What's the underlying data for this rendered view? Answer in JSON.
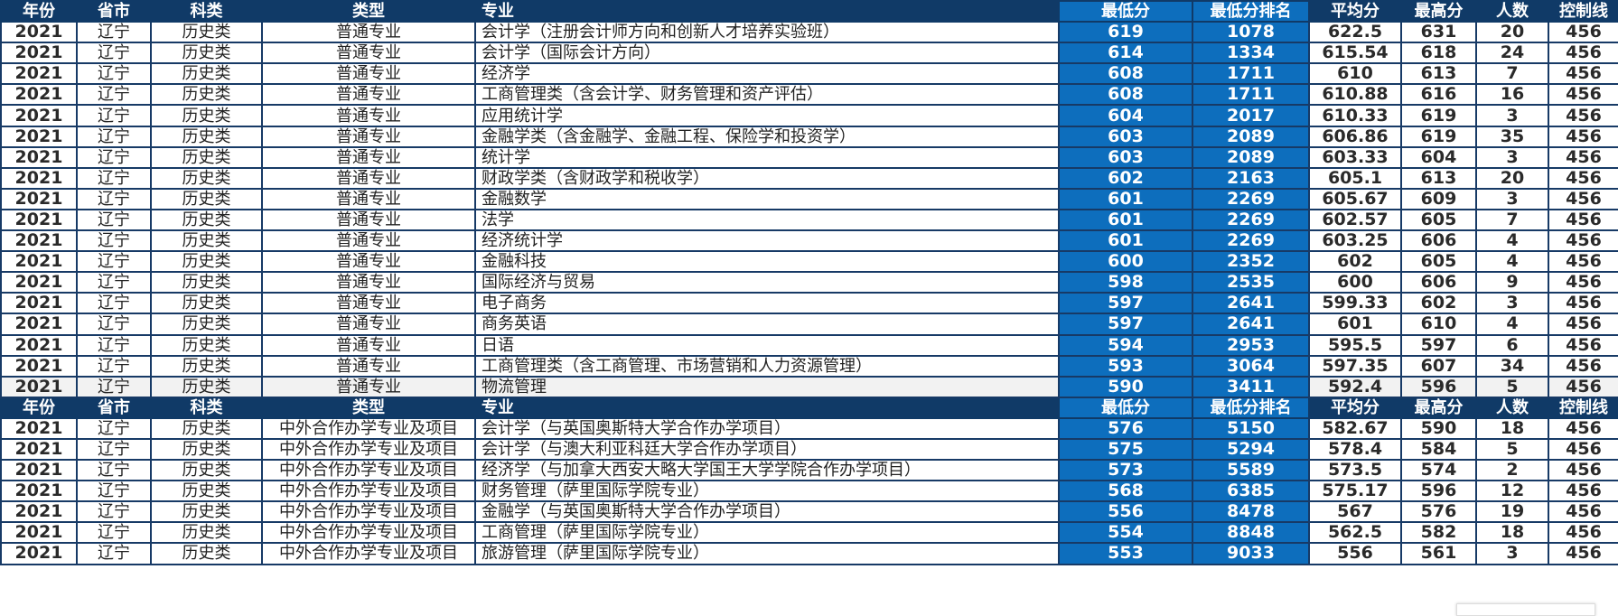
{
  "headers": [
    "年份",
    "省市",
    "科类",
    "类型",
    "专业",
    "最低分",
    "最低分排名",
    "平均分",
    "最高分",
    "人数",
    "控制线"
  ],
  "colors": {
    "header_bg": "#103a67",
    "highlight_bg": "#0d6ebd",
    "border": "#173a66",
    "shaded_row": "#f2f2f2"
  },
  "section1": [
    [
      "2021",
      "辽宁",
      "历史类",
      "普通专业",
      "会计学（注册会计师方向和创新人才培养实验班）",
      "619",
      "1078",
      "622.5",
      "631",
      "20",
      "456"
    ],
    [
      "2021",
      "辽宁",
      "历史类",
      "普通专业",
      "会计学（国际会计方向）",
      "614",
      "1334",
      "615.54",
      "618",
      "24",
      "456"
    ],
    [
      "2021",
      "辽宁",
      "历史类",
      "普通专业",
      "经济学",
      "608",
      "1711",
      "610",
      "613",
      "7",
      "456"
    ],
    [
      "2021",
      "辽宁",
      "历史类",
      "普通专业",
      "工商管理类（含会计学、财务管理和资产评估）",
      "608",
      "1711",
      "610.88",
      "616",
      "16",
      "456"
    ],
    [
      "2021",
      "辽宁",
      "历史类",
      "普通专业",
      "应用统计学",
      "604",
      "2017",
      "610.33",
      "619",
      "3",
      "456"
    ],
    [
      "2021",
      "辽宁",
      "历史类",
      "普通专业",
      "金融学类（含金融学、金融工程、保险学和投资学）",
      "603",
      "2089",
      "606.86",
      "619",
      "35",
      "456"
    ],
    [
      "2021",
      "辽宁",
      "历史类",
      "普通专业",
      "统计学",
      "603",
      "2089",
      "603.33",
      "604",
      "3",
      "456"
    ],
    [
      "2021",
      "辽宁",
      "历史类",
      "普通专业",
      "财政学类（含财政学和税收学）",
      "602",
      "2163",
      "605.1",
      "613",
      "20",
      "456"
    ],
    [
      "2021",
      "辽宁",
      "历史类",
      "普通专业",
      "金融数学",
      "601",
      "2269",
      "605.67",
      "609",
      "3",
      "456"
    ],
    [
      "2021",
      "辽宁",
      "历史类",
      "普通专业",
      "法学",
      "601",
      "2269",
      "602.57",
      "605",
      "7",
      "456"
    ],
    [
      "2021",
      "辽宁",
      "历史类",
      "普通专业",
      "经济统计学",
      "601",
      "2269",
      "603.25",
      "606",
      "4",
      "456"
    ],
    [
      "2021",
      "辽宁",
      "历史类",
      "普通专业",
      "金融科技",
      "600",
      "2352",
      "602",
      "605",
      "4",
      "456"
    ],
    [
      "2021",
      "辽宁",
      "历史类",
      "普通专业",
      "国际经济与贸易",
      "598",
      "2535",
      "600",
      "606",
      "9",
      "456"
    ],
    [
      "2021",
      "辽宁",
      "历史类",
      "普通专业",
      "电子商务",
      "597",
      "2641",
      "599.33",
      "602",
      "3",
      "456"
    ],
    [
      "2021",
      "辽宁",
      "历史类",
      "普通专业",
      "商务英语",
      "597",
      "2641",
      "601",
      "610",
      "4",
      "456"
    ],
    [
      "2021",
      "辽宁",
      "历史类",
      "普通专业",
      "日语",
      "594",
      "2953",
      "595.5",
      "597",
      "6",
      "456"
    ],
    [
      "2021",
      "辽宁",
      "历史类",
      "普通专业",
      "工商管理类（含工商管理、市场营销和人力资源管理）",
      "593",
      "3064",
      "597.35",
      "607",
      "34",
      "456"
    ],
    [
      "2021",
      "辽宁",
      "历史类",
      "普通专业",
      "物流管理",
      "590",
      "3411",
      "592.4",
      "596",
      "5",
      "456"
    ]
  ],
  "section2": [
    [
      "2021",
      "辽宁",
      "历史类",
      "中外合作办学专业及项目",
      "会计学（与英国奥斯特大学合作办学项目）",
      "576",
      "5150",
      "582.67",
      "590",
      "18",
      "456"
    ],
    [
      "2021",
      "辽宁",
      "历史类",
      "中外合作办学专业及项目",
      "会计学（与澳大利亚科廷大学合作办学项目）",
      "575",
      "5294",
      "578.4",
      "584",
      "5",
      "456"
    ],
    [
      "2021",
      "辽宁",
      "历史类",
      "中外合作办学专业及项目",
      "经济学（与加拿大西安大略大学国王大学学院合作办学项目）",
      "573",
      "5589",
      "573.5",
      "574",
      "2",
      "456"
    ],
    [
      "2021",
      "辽宁",
      "历史类",
      "中外合作办学专业及项目",
      "财务管理（萨里国际学院专业）",
      "568",
      "6385",
      "575.17",
      "596",
      "12",
      "456"
    ],
    [
      "2021",
      "辽宁",
      "历史类",
      "中外合作办学专业及项目",
      "金融学（与英国奥斯特大学合作办学项目）",
      "556",
      "8478",
      "567",
      "576",
      "19",
      "456"
    ],
    [
      "2021",
      "辽宁",
      "历史类",
      "中外合作办学专业及项目",
      "工商管理（萨里国际学院专业）",
      "554",
      "8848",
      "562.5",
      "582",
      "18",
      "456"
    ],
    [
      "2021",
      "辽宁",
      "历史类",
      "中外合作办学专业及项目",
      "旅游管理（萨里国际学院专业）",
      "553",
      "9033",
      "556",
      "561",
      "3",
      "456"
    ]
  ]
}
